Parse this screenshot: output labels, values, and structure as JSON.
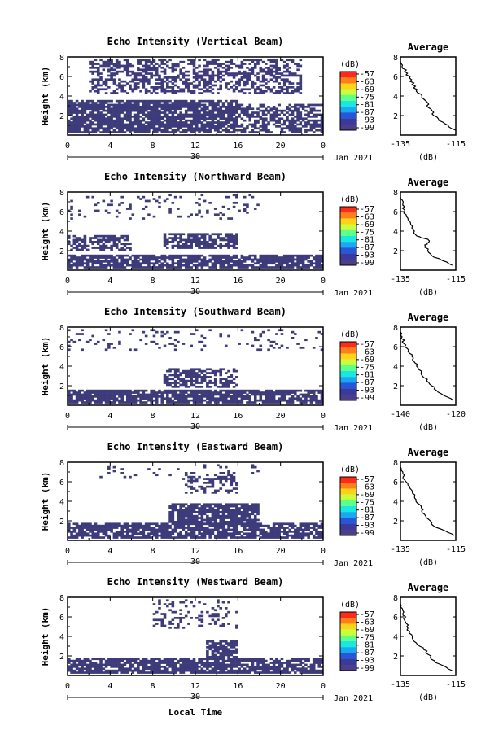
{
  "figure": {
    "x_tick_labels": [
      "0",
      "4",
      "8",
      "12",
      "16",
      "20",
      "0"
    ],
    "date_label": "30",
    "month_label": "Jan 2021",
    "xlabel": "Local Time",
    "ylabel": "Height (km)",
    "y_tick_labels": [
      "2",
      "4",
      "6",
      "8"
    ],
    "colorbar": {
      "title": "(dB)",
      "tick_labels": [
        "-57",
        "-63",
        "-69",
        "-75",
        "-81",
        "-87",
        "-93",
        "-99"
      ],
      "colors": [
        "#ff2a1a",
        "#ff7f1a",
        "#ffd21a",
        "#c8ff3a",
        "#5fff8c",
        "#1ae8e0",
        "#1aa8f0",
        "#2856d8",
        "#3a3a9c",
        "#4b3f8a"
      ]
    },
    "heatmap_color": "#3d3b7a",
    "average_title": "Average",
    "average_xlabel": "(dB)"
  },
  "chart_data": [
    {
      "type": "heatmap",
      "title": "Echo Intensity (Vertical Beam)",
      "x_range_hours": [
        0,
        24
      ],
      "ylim_km": [
        0,
        8
      ],
      "echo_layers_km": [
        {
          "from_hour": 2,
          "to_hour": 22,
          "bottom_km": 4.2,
          "top_km": 7.8,
          "density": 0.5
        },
        {
          "from_hour": 0,
          "to_hour": 16,
          "bottom_km": 0.2,
          "top_km": 3.6,
          "density": 0.85
        },
        {
          "from_hour": 16,
          "to_hour": 24,
          "bottom_km": 0.2,
          "top_km": 3.2,
          "density": 0.6
        }
      ],
      "average_profile": {
        "xlim": [
          -135,
          -115
        ],
        "x_tick_labels": [
          "-135",
          "-115"
        ],
        "height_km": [
          0.5,
          1.5,
          2.5,
          3.5,
          4.5,
          5.5,
          6.5,
          7.5
        ],
        "db": [
          -115,
          -121,
          -124,
          -126,
          -129,
          -131,
          -133,
          -135
        ]
      }
    },
    {
      "type": "heatmap",
      "title": "Echo Intensity (Northward Beam)",
      "x_range_hours": [
        0,
        24
      ],
      "ylim_km": [
        0,
        8
      ],
      "echo_layers_km": [
        {
          "from_hour": 0,
          "to_hour": 18,
          "bottom_km": 5.2,
          "top_km": 7.8,
          "density": 0.12
        },
        {
          "from_hour": 0,
          "to_hour": 6,
          "bottom_km": 2.0,
          "top_km": 3.6,
          "density": 0.6
        },
        {
          "from_hour": 9,
          "to_hour": 16,
          "bottom_km": 2.2,
          "top_km": 3.8,
          "density": 0.7
        },
        {
          "from_hour": 0,
          "to_hour": 24,
          "bottom_km": 0.2,
          "top_km": 1.6,
          "density": 0.8
        }
      ],
      "average_profile": {
        "xlim": [
          -135,
          -115
        ],
        "x_tick_labels": [
          "-135",
          "-115"
        ],
        "height_km": [
          0.5,
          1.5,
          2.5,
          3.0,
          3.5,
          4.5,
          5.5,
          6.5,
          7.5
        ],
        "db": [
          -116,
          -124,
          -126,
          -124,
          -129,
          -131,
          -133,
          -134,
          -135
        ]
      }
    },
    {
      "type": "heatmap",
      "title": "Echo Intensity (Southward Beam)",
      "x_range_hours": [
        0,
        24
      ],
      "ylim_km": [
        0,
        8
      ],
      "echo_layers_km": [
        {
          "from_hour": 0,
          "to_hour": 24,
          "bottom_km": 5.5,
          "top_km": 7.8,
          "density": 0.1
        },
        {
          "from_hour": 9,
          "to_hour": 16,
          "bottom_km": 1.8,
          "top_km": 3.8,
          "density": 0.6
        },
        {
          "from_hour": 0,
          "to_hour": 24,
          "bottom_km": 0.2,
          "top_km": 1.6,
          "density": 0.8
        }
      ],
      "average_profile": {
        "xlim": [
          -140,
          -120
        ],
        "x_tick_labels": [
          "-140",
          "-120"
        ],
        "height_km": [
          0.5,
          1.5,
          2.5,
          3.5,
          4.5,
          5.5,
          6.5,
          7.5
        ],
        "db": [
          -121,
          -127,
          -130,
          -133,
          -135,
          -137,
          -139,
          -140
        ]
      }
    },
    {
      "type": "heatmap",
      "title": "Echo Intensity (Eastward Beam)",
      "x_range_hours": [
        0,
        24
      ],
      "ylim_km": [
        0,
        8
      ],
      "echo_layers_km": [
        {
          "from_hour": 3,
          "to_hour": 18,
          "bottom_km": 6.2,
          "top_km": 7.8,
          "density": 0.1
        },
        {
          "from_hour": 11,
          "to_hour": 16,
          "bottom_km": 4.8,
          "top_km": 7.0,
          "density": 0.35
        },
        {
          "from_hour": 9.5,
          "to_hour": 18,
          "bottom_km": 1.6,
          "top_km": 3.8,
          "density": 0.85
        },
        {
          "from_hour": 0,
          "to_hour": 24,
          "bottom_km": 0.2,
          "top_km": 1.8,
          "density": 0.8
        }
      ],
      "average_profile": {
        "xlim": [
          -135,
          -115
        ],
        "x_tick_labels": [
          "-135",
          "-115"
        ],
        "height_km": [
          0.5,
          1.5,
          2.5,
          3.5,
          4.5,
          5.5,
          6.5,
          7.5
        ],
        "db": [
          -115,
          -123,
          -126,
          -128,
          -130,
          -132,
          -134,
          -135
        ]
      }
    },
    {
      "type": "heatmap",
      "title": "Echo Intensity (Westward Beam)",
      "x_range_hours": [
        0,
        24
      ],
      "ylim_km": [
        0,
        8
      ],
      "echo_layers_km": [
        {
          "from_hour": 8,
          "to_hour": 16,
          "bottom_km": 4.8,
          "top_km": 7.8,
          "density": 0.2
        },
        {
          "from_hour": 13,
          "to_hour": 16,
          "bottom_km": 1.8,
          "top_km": 3.6,
          "density": 0.75
        },
        {
          "from_hour": 0,
          "to_hour": 24,
          "bottom_km": 0.2,
          "top_km": 1.8,
          "density": 0.8
        }
      ],
      "average_profile": {
        "xlim": [
          -135,
          -115
        ],
        "x_tick_labels": [
          "-135",
          "-115"
        ],
        "height_km": [
          0.5,
          1.5,
          2.5,
          3.5,
          4.5,
          5.5,
          6.5,
          7.5
        ],
        "db": [
          -116,
          -123,
          -126,
          -130,
          -132,
          -133,
          -134,
          -135
        ]
      }
    }
  ]
}
